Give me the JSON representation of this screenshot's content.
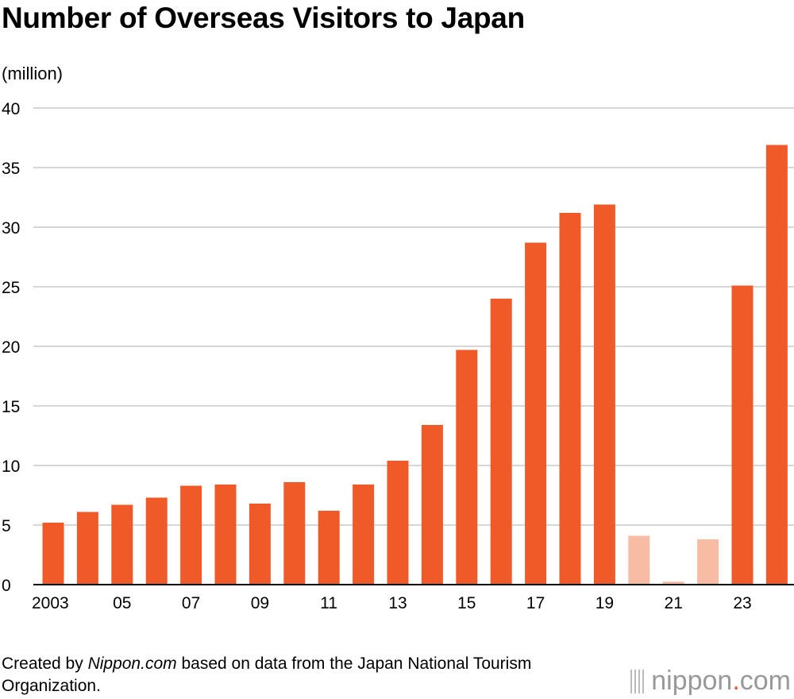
{
  "title": "Number of Overseas Visitors to Japan",
  "unit_label": "(million)",
  "footer": {
    "prefix": "Created by ",
    "site": "Nippon.com",
    "suffix": " based on data from the Japan National Tourism Organization."
  },
  "logo": {
    "left": "nippon",
    "dot": ".",
    "right": "com"
  },
  "colors": {
    "bar": "#f05a28",
    "bar_pandemic": "#f8bba4",
    "grid": "#c8c8c8",
    "axis": "#000000"
  },
  "chart_data": {
    "type": "bar",
    "title": "Number of Overseas Visitors to Japan",
    "ylabel": "(million)",
    "xlabel": "",
    "ylim": [
      0,
      40
    ],
    "yticks": [
      0,
      5,
      10,
      15,
      20,
      25,
      30,
      35,
      40
    ],
    "grid": true,
    "categories": [
      "2003",
      "2004",
      "2005",
      "2006",
      "2007",
      "2008",
      "2009",
      "2010",
      "2011",
      "2012",
      "2013",
      "2014",
      "2015",
      "2016",
      "2017",
      "2018",
      "2019",
      "2020",
      "2021",
      "2022",
      "2023",
      "2024"
    ],
    "tick_labels": [
      "2003",
      "",
      "05",
      "",
      "07",
      "",
      "09",
      "",
      "11",
      "",
      "13",
      "",
      "15",
      "",
      "17",
      "",
      "19",
      "",
      "21",
      "",
      "23",
      ""
    ],
    "values": [
      5.2,
      6.1,
      6.7,
      7.3,
      8.3,
      8.4,
      6.8,
      8.6,
      6.2,
      8.4,
      10.4,
      13.4,
      19.7,
      24.0,
      28.7,
      31.2,
      31.9,
      4.1,
      0.25,
      3.8,
      25.1,
      36.9
    ],
    "highlighted_pandemic_years": [
      "2020",
      "2021",
      "2022"
    ]
  }
}
